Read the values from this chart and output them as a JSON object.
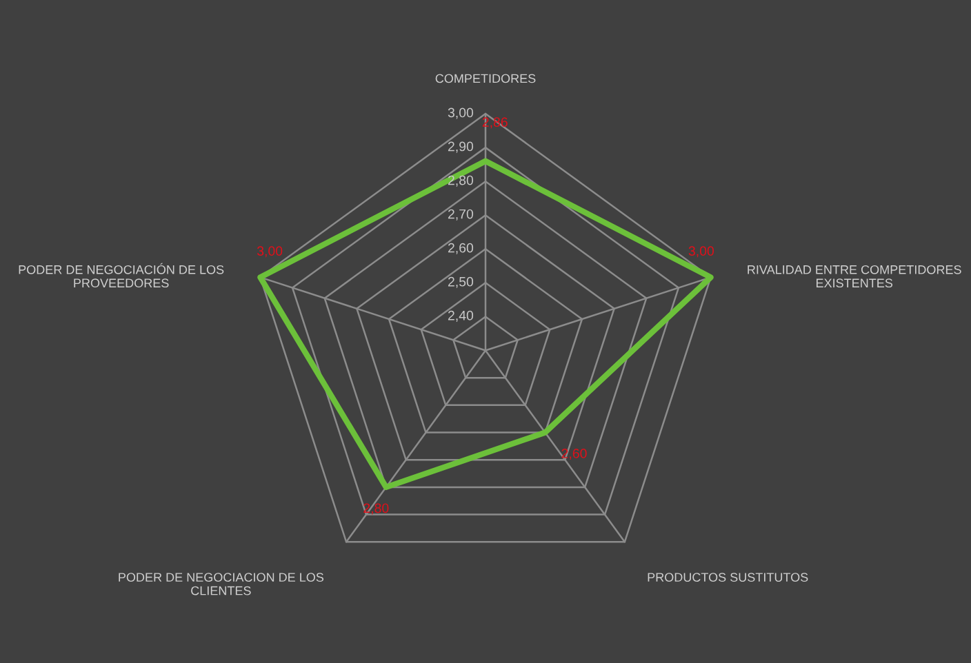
{
  "chart_data": {
    "type": "radar",
    "categories": [
      "COMPETIDORES",
      "RIVALIDAD ENTRE COMPETIDORES\nEXISTENTES",
      "PRODUCTOS SUSTITUTOS",
      "PODER DE NEGOCIACION DE LOS\nCLIENTES",
      "PODER DE NEGOCIACIÓN DE LOS\nPROVEEDORES"
    ],
    "series": [
      {
        "color": "#6cc03a",
        "values": [
          2.86,
          3.0,
          2.6,
          2.8,
          3.0
        ],
        "value_labels": [
          "2,86",
          "3,00",
          "2,60",
          "2,80",
          "3,00"
        ]
      }
    ],
    "ylim": [
      2.3,
      3.0
    ],
    "yticks": [
      {
        "value": 2.4,
        "label": "2,40"
      },
      {
        "value": 2.5,
        "label": "2,50"
      },
      {
        "value": 2.6,
        "label": "2,60"
      },
      {
        "value": 2.7,
        "label": "2,70"
      },
      {
        "value": 2.8,
        "label": "2,80"
      },
      {
        "value": 2.9,
        "label": "2,90"
      },
      {
        "value": 3.0,
        "label": "3,00"
      }
    ],
    "marker": "none"
  }
}
